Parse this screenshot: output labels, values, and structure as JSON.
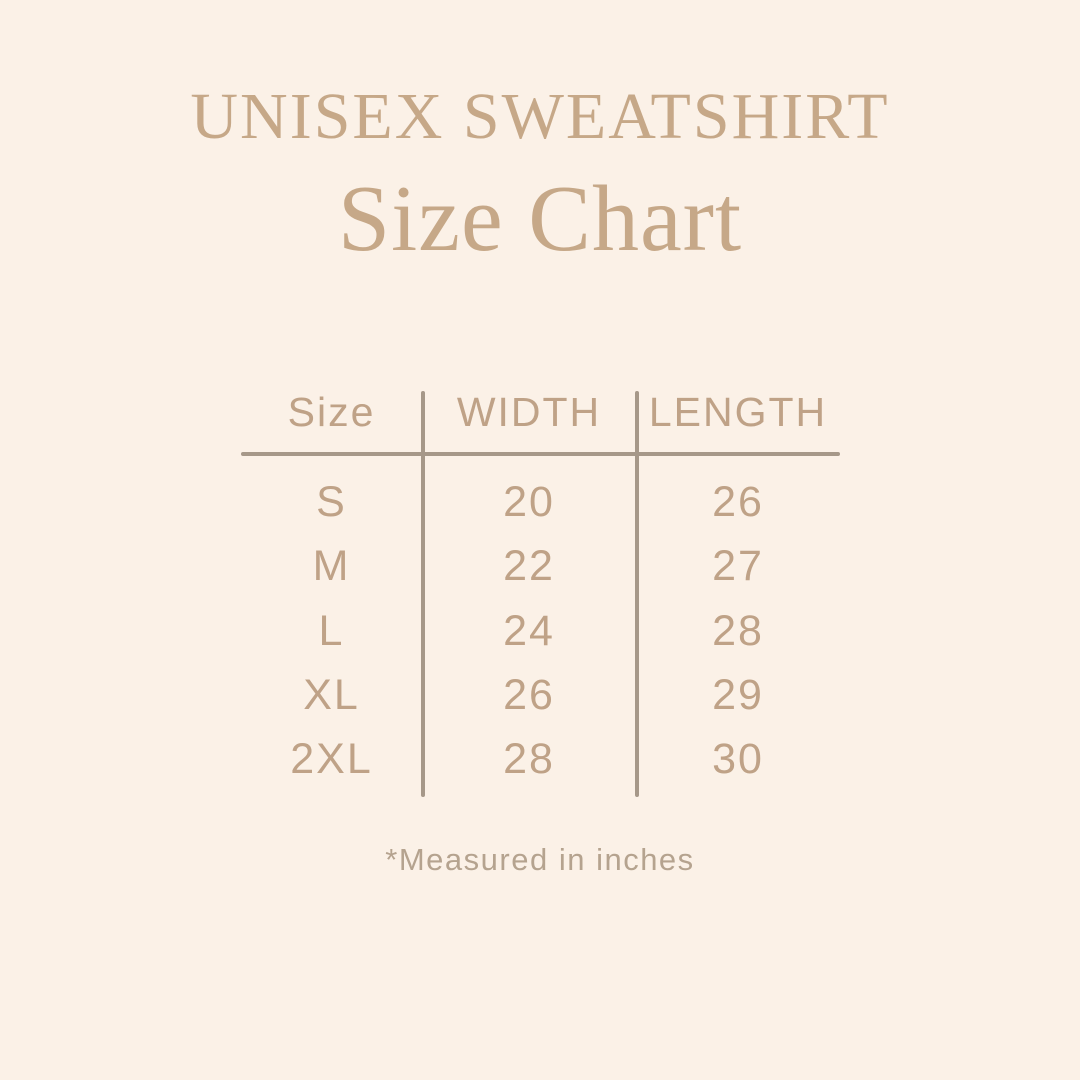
{
  "header": {
    "brand": "UNISEX SWEATSHIRT",
    "title": "Size Chart"
  },
  "colors": {
    "background": "#fbf1e7",
    "title_text": "#c6a888",
    "table_text": "#bfa287",
    "rule_lines": "#a69889",
    "footnote_text": "#b5a38f"
  },
  "size_table": {
    "columns": [
      "Size",
      "WIDTH",
      "LENGTH"
    ],
    "rows": [
      {
        "size": "S",
        "width": "20",
        "length": "26"
      },
      {
        "size": "M",
        "width": "22",
        "length": "27"
      },
      {
        "size": "L",
        "width": "24",
        "length": "28"
      },
      {
        "size": "XL",
        "width": "26",
        "length": "29"
      },
      {
        "size": "2XL",
        "width": "28",
        "length": "30"
      }
    ]
  },
  "footer": {
    "note": "*Measured in inches"
  },
  "chart_data": {
    "type": "table",
    "title": "UNISEX SWEATSHIRT Size Chart",
    "columns": [
      "Size",
      "WIDTH",
      "LENGTH"
    ],
    "rows": [
      [
        "S",
        20,
        26
      ],
      [
        "M",
        22,
        27
      ],
      [
        "L",
        24,
        28
      ],
      [
        "XL",
        26,
        29
      ],
      [
        "2XL",
        28,
        30
      ]
    ],
    "units": "inches"
  }
}
